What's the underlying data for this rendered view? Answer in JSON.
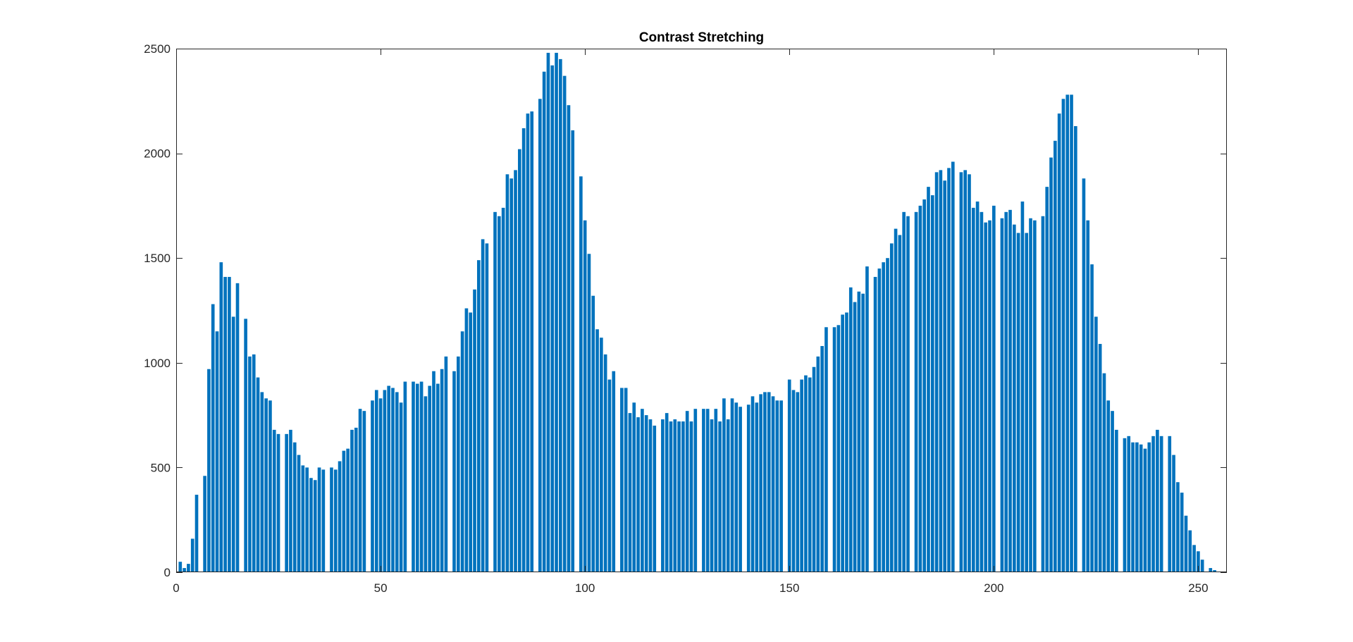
{
  "chart_data": {
    "type": "bar",
    "title": "Contrast Stretching",
    "xlabel": "",
    "ylabel": "",
    "xlim": [
      0,
      257
    ],
    "ylim": [
      0,
      2500
    ],
    "xticks": [
      0,
      50,
      100,
      150,
      200,
      250
    ],
    "yticks": [
      0,
      500,
      1000,
      1500,
      2000,
      2500
    ],
    "grid": false,
    "bar_color": "#0072BD",
    "x_start": 1,
    "values": [
      50,
      20,
      40,
      160,
      370,
      0,
      460,
      970,
      1280,
      1150,
      1480,
      1410,
      1410,
      1220,
      1380,
      0,
      1210,
      1030,
      1040,
      930,
      860,
      830,
      820,
      680,
      660,
      0,
      660,
      680,
      620,
      560,
      510,
      500,
      450,
      440,
      500,
      490,
      0,
      500,
      490,
      530,
      580,
      590,
      680,
      690,
      780,
      770,
      0,
      820,
      870,
      830,
      870,
      890,
      880,
      860,
      810,
      910,
      0,
      910,
      900,
      910,
      840,
      890,
      960,
      900,
      970,
      1030,
      0,
      960,
      1030,
      1150,
      1260,
      1240,
      1350,
      1490,
      1590,
      1570,
      0,
      1720,
      1700,
      1740,
      1900,
      1880,
      1920,
      2020,
      2120,
      2190,
      2200,
      0,
      2260,
      2390,
      2480,
      2420,
      2480,
      2450,
      2370,
      2230,
      2110,
      0,
      1890,
      1680,
      1520,
      1320,
      1160,
      1120,
      1040,
      920,
      960,
      0,
      880,
      880,
      760,
      810,
      740,
      780,
      750,
      730,
      700,
      0,
      730,
      760,
      720,
      730,
      720,
      720,
      770,
      720,
      780,
      0,
      780,
      780,
      730,
      780,
      720,
      830,
      730,
      830,
      810,
      790,
      0,
      800,
      840,
      810,
      850,
      860,
      860,
      840,
      820,
      820,
      0,
      920,
      870,
      860,
      920,
      940,
      930,
      980,
      1030,
      1080,
      1170,
      0,
      1170,
      1180,
      1230,
      1240,
      1360,
      1290,
      1340,
      1330,
      1460,
      0,
      1410,
      1450,
      1480,
      1500,
      1570,
      1640,
      1610,
      1720,
      1700,
      0,
      1720,
      1750,
      1780,
      1840,
      1800,
      1910,
      1920,
      1870,
      1930,
      1960,
      0,
      1910,
      1920,
      1900,
      1740,
      1770,
      1720,
      1670,
      1680,
      1750,
      0,
      1690,
      1720,
      1730,
      1660,
      1620,
      1770,
      1620,
      1690,
      1680,
      0,
      1700,
      1840,
      1980,
      2060,
      2190,
      2260,
      2280,
      2280,
      2130,
      0,
      1880,
      1680,
      1470,
      1220,
      1090,
      950,
      820,
      770,
      680,
      0,
      640,
      650,
      620,
      620,
      610,
      590,
      620,
      650,
      680,
      650,
      0,
      650,
      560,
      430,
      380,
      270,
      200,
      130,
      100,
      60,
      0,
      20,
      10
    ]
  }
}
